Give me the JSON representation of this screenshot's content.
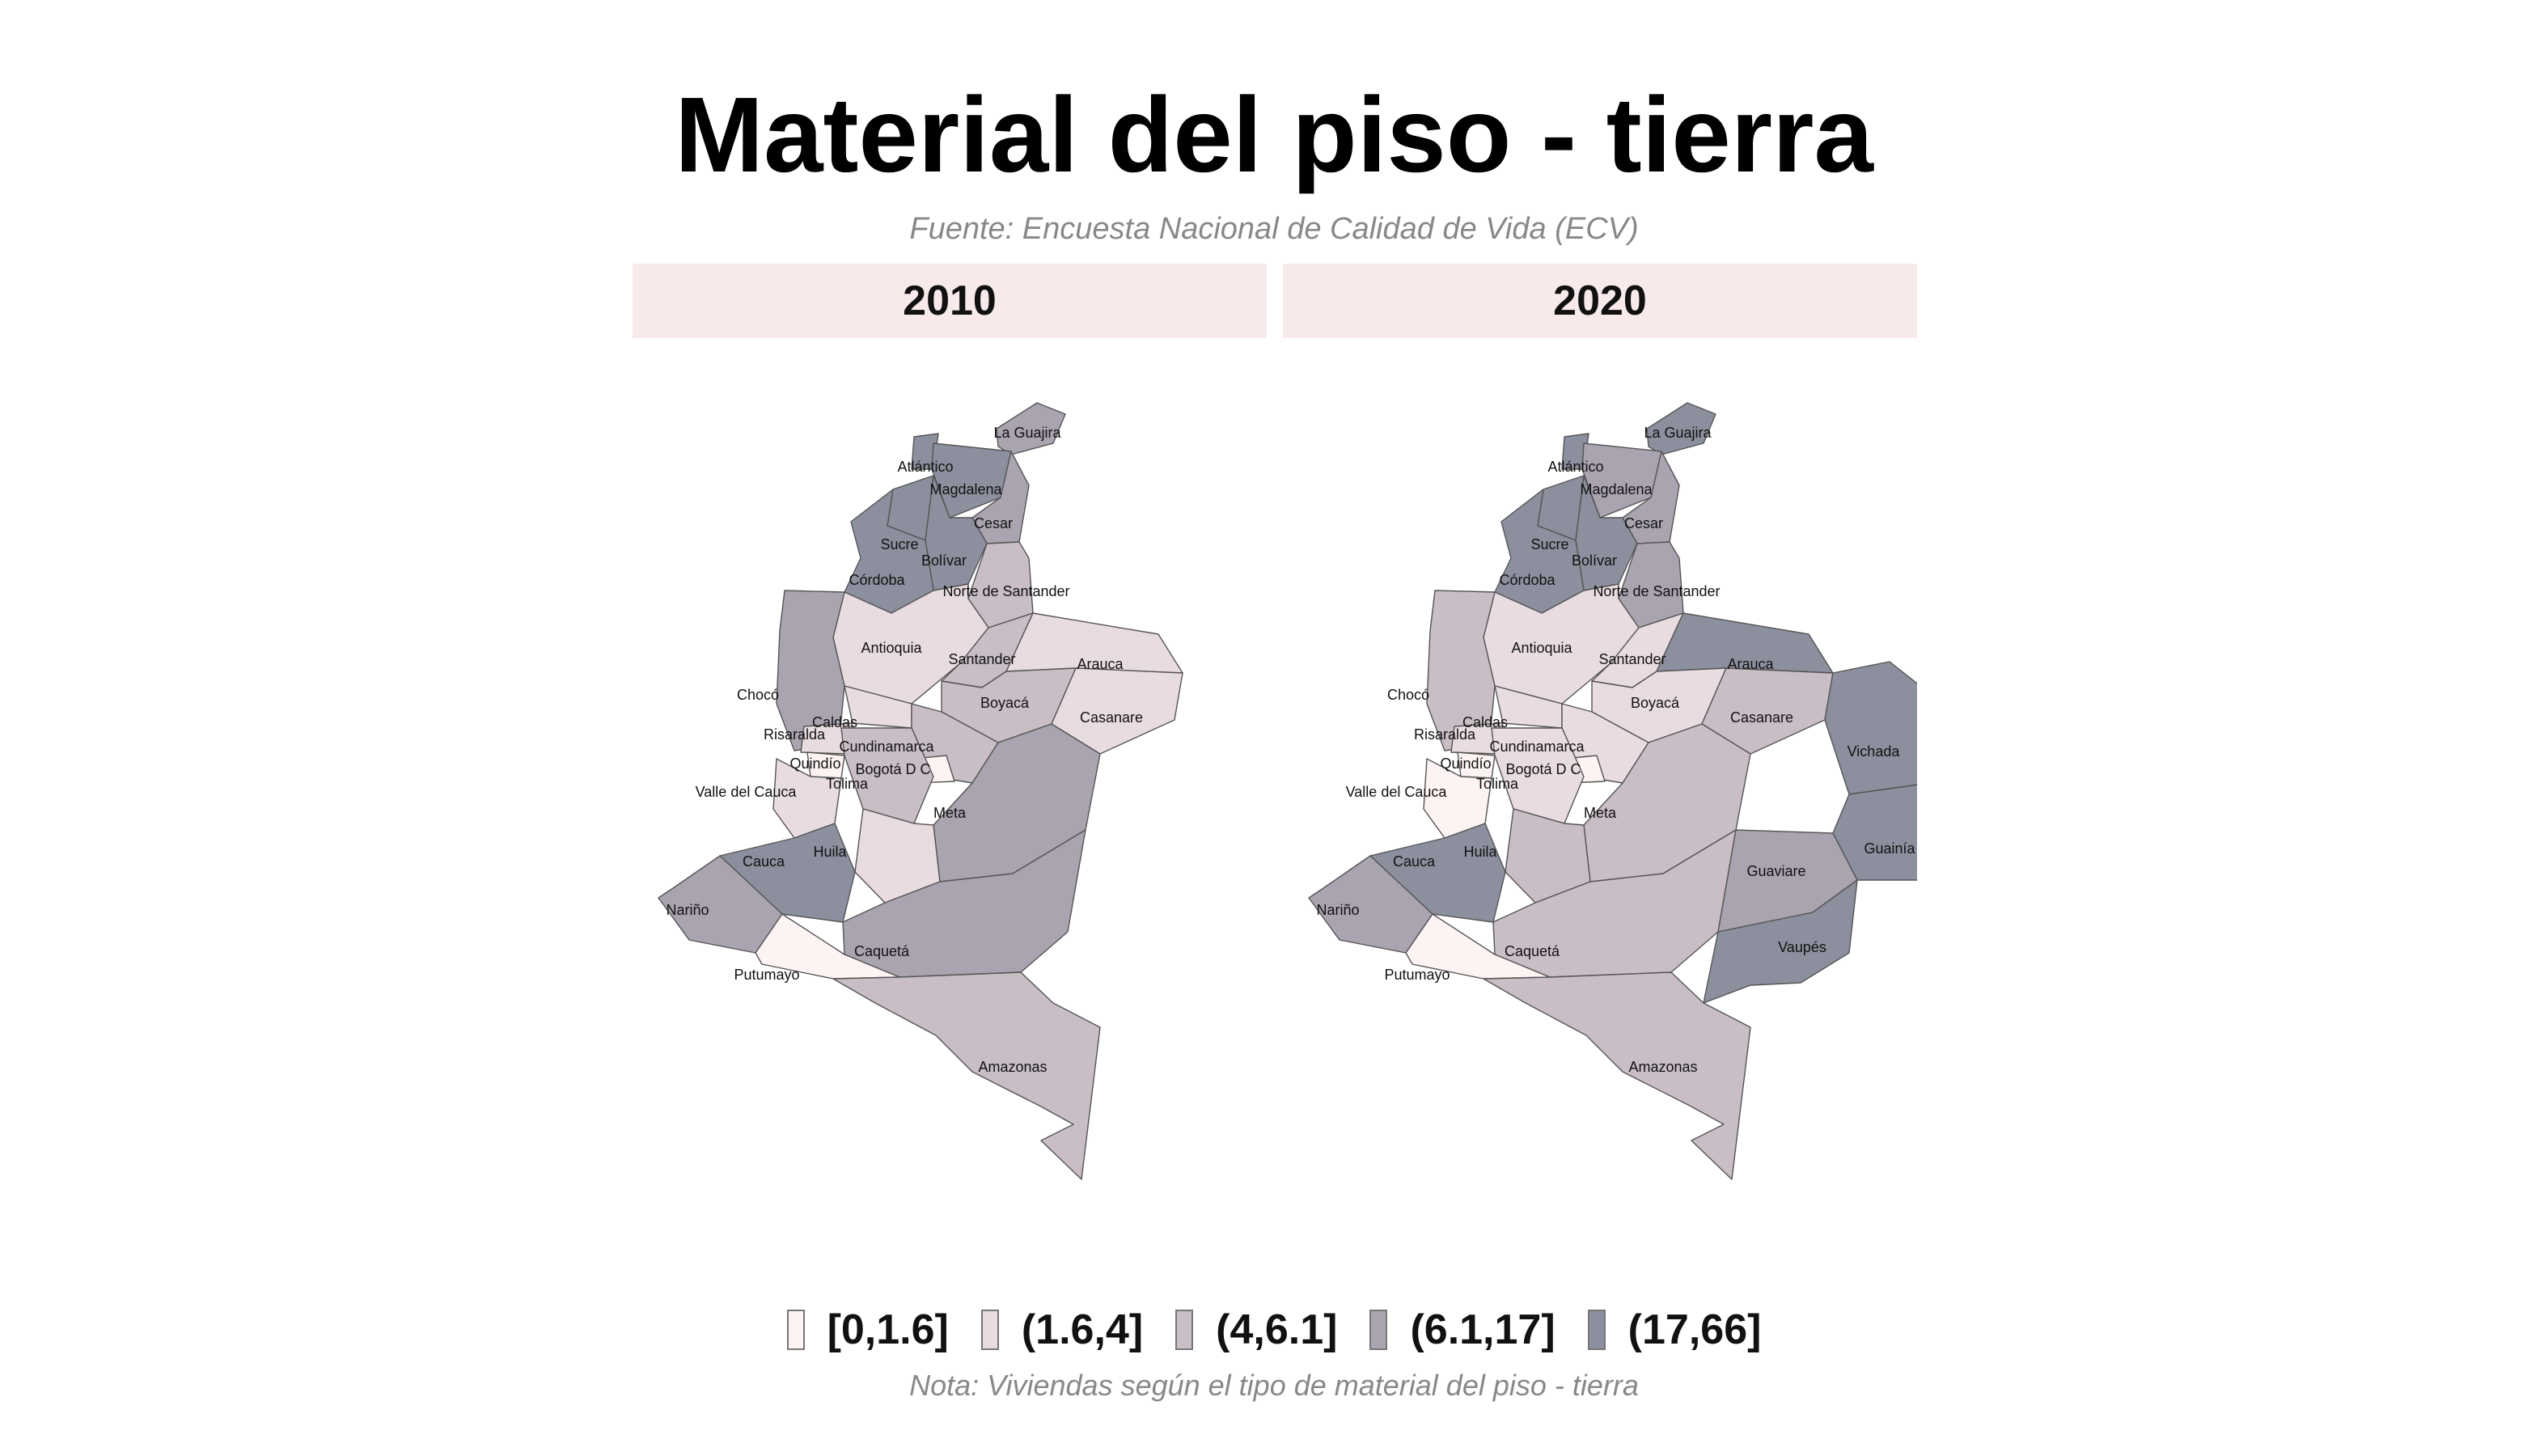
{
  "title": "Material del piso - tierra",
  "subtitle": "Fuente: Encuesta Nacional de Calidad de Vida (ECV)",
  "note": "Nota: Viviendas según el tipo de material del piso - tierra",
  "legend": [
    {
      "label": "[0,1.6]",
      "color": "#fdf3f3"
    },
    {
      "label": "(1.6,4]",
      "color": "#e9dce0"
    },
    {
      "label": "(4,6.1]",
      "color": "#c9bec6"
    },
    {
      "label": "(6.1,17]",
      "color": "#a9a4b0"
    },
    {
      "label": "(17,66]",
      "color": "#8c909e"
    }
  ],
  "panels": [
    {
      "year": "2010",
      "classes": {
        "La Guajira": 3,
        "Atlántico": 4,
        "Magdalena": 4,
        "Cesar": 3,
        "Sucre": 4,
        "Bolívar": 4,
        "Córdoba": 4,
        "Norte de Santander": 2,
        "Antioquia": 1,
        "Santander": 2,
        "Arauca": 1,
        "Chocó": 3,
        "Boyacá": 2,
        "Casanare": 1,
        "Caldas": 1,
        "Risaralda": 1,
        "Cundinamarca": 2,
        "Quindío": 0,
        "Bogotá D C": 0,
        "Tolima": 2,
        "Valle del Cauca": 1,
        "Meta": 3,
        "Huila": 1,
        "Cauca": 4,
        "Nariño": 3,
        "Caquetá": 3,
        "Putumayo": 0,
        "Amazonas": 2
      }
    },
    {
      "year": "2020",
      "classes": {
        "La Guajira": 4,
        "Atlántico": 4,
        "Magdalena": 3,
        "Cesar": 3,
        "Sucre": 4,
        "Bolívar": 4,
        "Córdoba": 4,
        "Norte de Santander": 3,
        "Antioquia": 1,
        "Santander": 1,
        "Arauca": 4,
        "Chocó": 2,
        "Boyacá": 1,
        "Casanare": 2,
        "Caldas": 1,
        "Risaralda": 1,
        "Cundinamarca": 1,
        "Quindío": 0,
        "Bogotá D C": 0,
        "Tolima": 1,
        "Valle del Cauca": 0,
        "Meta": 2,
        "Huila": 2,
        "Cauca": 4,
        "Nariño": 3,
        "Caquetá": 2,
        "Putumayo": 0,
        "Amazonas": 2,
        "Vichada": 4,
        "Guainía": 4,
        "Guaviare": 3,
        "Vaupés": 4
      }
    }
  ]
}
